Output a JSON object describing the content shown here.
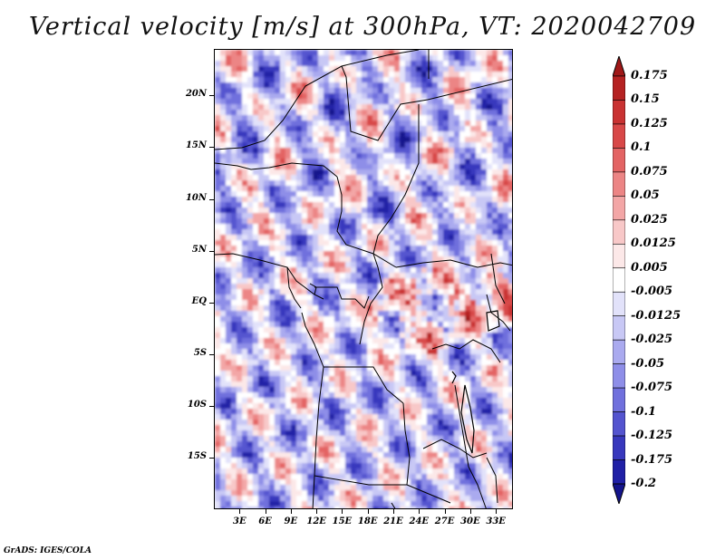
{
  "title": "Vertical velocity [m/s] at 300hPa, VT: 2020042709",
  "credit": "GrADS: IGES/COLA",
  "axes": {
    "lat_labels": [
      "20N",
      "15N",
      "10N",
      "5N",
      "EQ",
      "5S",
      "10S",
      "15S"
    ],
    "lat_values": [
      20,
      15,
      10,
      5,
      0,
      -5,
      -10,
      -15
    ],
    "lon_labels": [
      "3E",
      "6E",
      "9E",
      "12E",
      "15E",
      "18E",
      "21E",
      "24E",
      "27E",
      "30E",
      "33E"
    ],
    "lon_values": [
      3,
      6,
      9,
      12,
      15,
      18,
      21,
      24,
      27,
      30,
      33
    ],
    "lat_range": [
      -20,
      24.5
    ],
    "lon_range": [
      0,
      35
    ]
  },
  "colorbar": {
    "labels": [
      "0.175",
      "0.15",
      "0.125",
      "0.1",
      "0.075",
      "0.05",
      "0.025",
      "0.0125",
      "0.005",
      "-0.005",
      "-0.0125",
      "-0.025",
      "-0.05",
      "-0.075",
      "-0.1",
      "-0.125",
      "-0.175",
      "-0.2"
    ],
    "colors": [
      "#a01818",
      "#b52222",
      "#c93232",
      "#d84848",
      "#e36464",
      "#ec8585",
      "#f3a6a6",
      "#f8c8c8",
      "#fce8e8",
      "#ffffff",
      "#e2e2fa",
      "#c8c8f5",
      "#aaaaef",
      "#8e8ee8",
      "#7070dd",
      "#5454cf",
      "#3838bd",
      "#2020a6",
      "#14148c"
    ]
  }
}
